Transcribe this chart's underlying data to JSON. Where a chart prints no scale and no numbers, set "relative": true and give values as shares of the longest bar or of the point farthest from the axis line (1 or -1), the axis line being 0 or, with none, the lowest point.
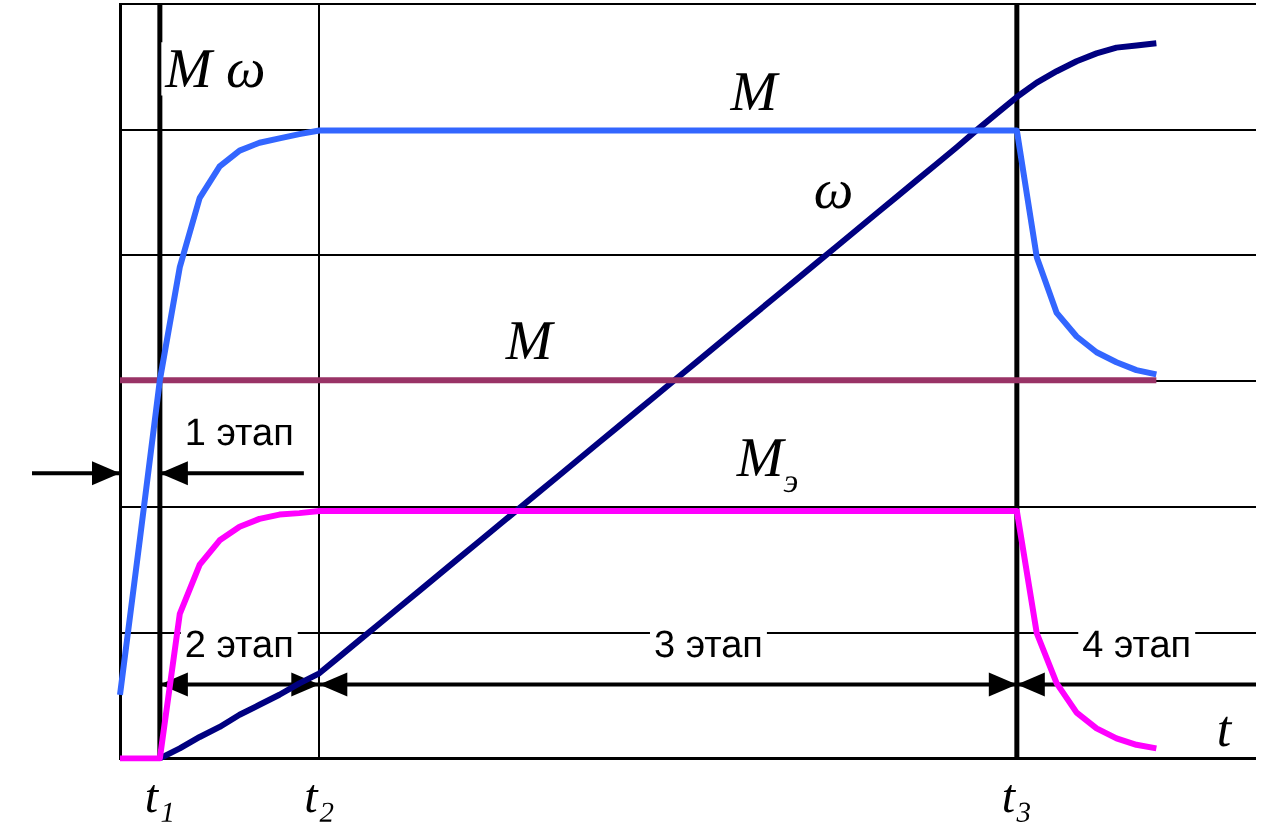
{
  "chart_data": {
    "type": "line",
    "relative": true,
    "grid": true,
    "legend": false,
    "marker": "none",
    "line_style": "solid",
    "xlabel": "t",
    "categories": [
      null,
      null,
      "t₁",
      null,
      null,
      null,
      null,
      null,
      null,
      null,
      "t₂",
      null,
      null,
      null,
      null,
      null,
      null,
      null,
      null,
      null,
      null,
      null,
      null,
      null,
      null,
      null,
      null,
      null,
      null,
      null,
      null,
      null,
      null,
      null,
      null,
      null,
      null,
      null,
      null,
      null,
      null,
      null,
      null,
      null,
      null,
      "t₃",
      null,
      null,
      null,
      null,
      null,
      null,
      null,
      null,
      null,
      null,
      null,
      null
    ],
    "ref_lines": [
      {
        "axis": "x",
        "value": "t₁",
        "color": "#000000"
      },
      {
        "axis": "x",
        "value": "t₃",
        "color": "#000000"
      }
    ],
    "series": [
      {
        "color": "#3366ff",
        "values": [
          0.089,
          0.307,
          0.529,
          0.687,
          0.784,
          0.828,
          0.85,
          0.861,
          0.867,
          0.873,
          0.878,
          0.878,
          0.878,
          0.878,
          0.878,
          0.878,
          0.878,
          0.878,
          0.878,
          0.878,
          0.878,
          0.878,
          0.878,
          0.878,
          0.878,
          0.878,
          0.878,
          0.878,
          0.878,
          0.878,
          0.878,
          0.878,
          0.878,
          0.878,
          0.878,
          0.878,
          0.878,
          0.878,
          0.878,
          0.878,
          0.878,
          0.878,
          0.878,
          0.878,
          0.878,
          0.878,
          0.701,
          0.623,
          0.59,
          0.568,
          0.554,
          0.543,
          0.537,
          null,
          null,
          null,
          null,
          null
        ]
      },
      {
        "color": "#993366",
        "values": [
          0.529,
          0.529,
          0.529,
          0.529,
          0.529,
          0.529,
          0.529,
          0.529,
          0.529,
          0.529,
          0.529,
          0.529,
          0.529,
          0.529,
          0.529,
          0.529,
          0.529,
          0.529,
          0.529,
          0.529,
          0.529,
          0.529,
          0.529,
          0.529,
          0.529,
          0.529,
          0.529,
          0.529,
          0.529,
          0.529,
          0.529,
          0.529,
          0.529,
          0.529,
          0.529,
          0.529,
          0.529,
          0.529,
          0.529,
          0.529,
          0.529,
          0.529,
          0.529,
          0.529,
          0.529,
          0.529,
          0.529,
          0.529,
          0.529,
          0.529,
          0.529,
          0.529,
          0.529,
          null,
          null,
          null,
          null,
          null
        ]
      },
      {
        "color": "#ff00ff",
        "values": [
          0,
          0,
          0,
          0.202,
          0.271,
          0.305,
          0.324,
          0.335,
          0.341,
          0.343,
          0.346,
          0.346,
          0.346,
          0.346,
          0.346,
          0.346,
          0.346,
          0.346,
          0.346,
          0.346,
          0.346,
          0.346,
          0.346,
          0.346,
          0.346,
          0.346,
          0.346,
          0.346,
          0.346,
          0.346,
          0.346,
          0.346,
          0.346,
          0.346,
          0.346,
          0.346,
          0.346,
          0.346,
          0.346,
          0.346,
          0.346,
          0.346,
          0.346,
          0.346,
          0.346,
          0.346,
          0.175,
          0.105,
          0.064,
          0.042,
          0.028,
          0.019,
          0.014,
          null,
          null,
          null,
          null,
          null
        ]
      },
      {
        "color": "#000080",
        "values": [
          null,
          null,
          0,
          0.014,
          0.03,
          0.044,
          0.061,
          0.075,
          0.089,
          0.105,
          0.119,
          0.142,
          0.165,
          0.188,
          0.211,
          0.234,
          0.257,
          0.28,
          0.303,
          0.326,
          0.349,
          0.372,
          0.395,
          0.418,
          0.441,
          0.464,
          0.487,
          0.51,
          0.533,
          0.556,
          0.579,
          0.602,
          0.625,
          0.648,
          0.671,
          0.694,
          0.717,
          0.74,
          0.763,
          0.786,
          0.809,
          0.832,
          0.855,
          0.879,
          0.902,
          0.925,
          0.945,
          0.961,
          0.975,
          0.986,
          0.994,
          0.997,
          1.0,
          null,
          null,
          null,
          null,
          null
        ]
      }
    ],
    "annotations": [
      "M ω",
      "M",
      "ω",
      "M",
      "M$_{э}$",
      "1 этап",
      "2 этап",
      "3 этап",
      "4 этап"
    ]
  }
}
